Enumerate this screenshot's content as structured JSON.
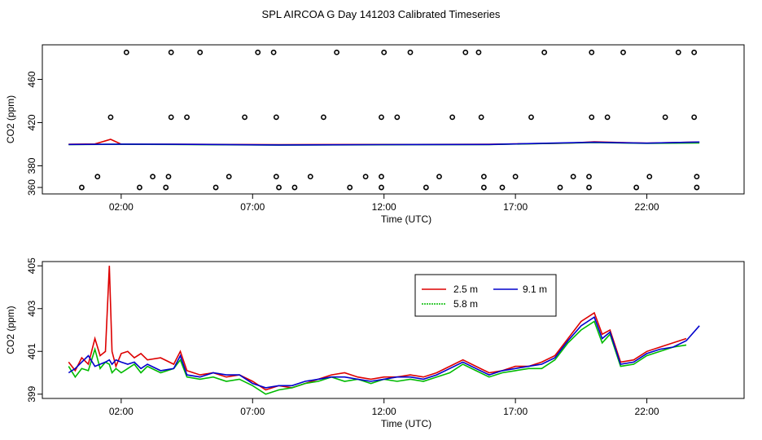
{
  "figure": {
    "title": "SPL AIRCOA G  Day 141203  Calibrated Timeseries"
  },
  "colors": {
    "2.5 m": "#dd0000",
    "5.8 m": "#00bb00",
    "9.1 m": "#0000cc",
    "axis": "#000000"
  },
  "chart_data": [
    {
      "type": "scatter",
      "title": "",
      "xlabel": "Time (UTC)",
      "ylabel": "CO2 (ppm)",
      "x_unit": "hours UTC",
      "xlim": [
        -1.0,
        25.7
      ],
      "ylim": [
        354,
        492
      ],
      "xticks": [
        2,
        7,
        12,
        17,
        22
      ],
      "xtick_labels": [
        "02:00",
        "07:00",
        "12:00",
        "17:00",
        "22:00"
      ],
      "yticks": [
        360,
        380,
        420,
        460
      ],
      "ytick_labels": [
        "360",
        "380",
        "420",
        "460"
      ],
      "grid": false,
      "legend": "none",
      "points": [
        [
          0.5,
          360
        ],
        [
          1.1,
          370
        ],
        [
          1.6,
          425
        ],
        [
          2.2,
          485
        ],
        [
          2.7,
          360
        ],
        [
          3.2,
          370
        ],
        [
          3.7,
          360
        ],
        [
          3.8,
          370
        ],
        [
          3.9,
          425
        ],
        [
          3.9,
          485
        ],
        [
          4.5,
          425
        ],
        [
          5.0,
          485
        ],
        [
          5.6,
          360
        ],
        [
          6.1,
          370
        ],
        [
          6.7,
          425
        ],
        [
          7.2,
          485
        ],
        [
          7.8,
          485
        ],
        [
          7.9,
          370
        ],
        [
          7.9,
          425
        ],
        [
          8.0,
          360
        ],
        [
          8.6,
          360
        ],
        [
          9.2,
          370
        ],
        [
          9.7,
          425
        ],
        [
          10.2,
          485
        ],
        [
          10.7,
          360
        ],
        [
          11.3,
          370
        ],
        [
          11.9,
          360
        ],
        [
          11.9,
          370
        ],
        [
          11.9,
          425
        ],
        [
          12.0,
          485
        ],
        [
          12.5,
          425
        ],
        [
          13.0,
          485
        ],
        [
          13.6,
          360
        ],
        [
          14.1,
          370
        ],
        [
          14.6,
          425
        ],
        [
          15.1,
          485
        ],
        [
          15.6,
          485
        ],
        [
          15.7,
          425
        ],
        [
          15.8,
          370
        ],
        [
          15.8,
          360
        ],
        [
          16.5,
          360
        ],
        [
          17.0,
          370
        ],
        [
          17.6,
          425
        ],
        [
          18.1,
          485
        ],
        [
          18.7,
          360
        ],
        [
          19.2,
          370
        ],
        [
          19.8,
          360
        ],
        [
          19.8,
          370
        ],
        [
          19.9,
          425
        ],
        [
          19.9,
          485
        ],
        [
          20.5,
          425
        ],
        [
          21.1,
          485
        ],
        [
          21.6,
          360
        ],
        [
          22.1,
          370
        ],
        [
          22.7,
          425
        ],
        [
          23.2,
          485
        ],
        [
          23.8,
          485
        ],
        [
          23.8,
          425
        ],
        [
          23.9,
          370
        ],
        [
          23.9,
          360
        ]
      ],
      "series": [
        {
          "name": "",
          "x": [
            0,
            1,
            1.6,
            2,
            4,
            8,
            12,
            16,
            19,
            20,
            22,
            24
          ],
          "values": [
            399.9,
            400.2,
            404.5,
            400.0,
            400.0,
            399.6,
            399.8,
            399.9,
            401.0,
            402.2,
            401.0,
            402.0
          ]
        },
        {
          "name": "",
          "x": [
            0,
            2,
            4,
            8,
            12,
            16,
            20,
            22,
            24
          ],
          "values": [
            399.7,
            399.9,
            399.8,
            399.2,
            399.5,
            399.7,
            401.5,
            400.8,
            401.2
          ]
        },
        {
          "name": "",
          "x": [
            0,
            2,
            4,
            8,
            12,
            16,
            20,
            22,
            24
          ],
          "values": [
            399.8,
            400.1,
            399.9,
            399.3,
            399.6,
            399.8,
            401.8,
            401.0,
            402.0
          ]
        }
      ]
    },
    {
      "type": "line",
      "title": "",
      "xlabel": "Time (UTC)",
      "ylabel": "CO2 (ppm)",
      "x_unit": "hours UTC",
      "xlim": [
        -1.0,
        25.7
      ],
      "ylim": [
        398.8,
        405.2
      ],
      "xticks": [
        2,
        7,
        12,
        17,
        22
      ],
      "xtick_labels": [
        "02:00",
        "07:00",
        "12:00",
        "17:00",
        "22:00"
      ],
      "yticks": [
        399,
        401,
        403,
        405
      ],
      "ytick_labels": [
        "399",
        "401",
        "403",
        "405"
      ],
      "grid": false,
      "legend": "top-center",
      "series": [
        {
          "name": "2.5 m",
          "x": [
            0,
            0.25,
            0.5,
            0.75,
            1,
            1.2,
            1.4,
            1.55,
            1.65,
            1.8,
            2,
            2.25,
            2.5,
            2.75,
            3,
            3.5,
            4,
            4.25,
            4.5,
            5,
            5.5,
            6,
            6.5,
            7,
            7.5,
            8,
            8.5,
            9,
            9.5,
            10,
            10.5,
            11,
            11.5,
            12,
            12.5,
            13,
            13.5,
            14,
            14.5,
            15,
            15.5,
            16,
            16.5,
            17,
            17.5,
            18,
            18.5,
            19,
            19.5,
            20,
            20.3,
            20.6,
            21,
            21.5,
            22,
            22.5,
            23,
            23.5
          ],
          "values": [
            400.5,
            400.1,
            400.7,
            400.4,
            401.6,
            400.8,
            401.0,
            405.0,
            401.0,
            400.3,
            400.9,
            401.0,
            400.7,
            400.9,
            400.6,
            400.7,
            400.4,
            401.0,
            400.1,
            399.9,
            400.0,
            399.8,
            399.9,
            399.6,
            399.2,
            399.4,
            399.3,
            399.5,
            399.7,
            399.9,
            400.0,
            399.8,
            399.7,
            399.8,
            399.8,
            399.9,
            399.8,
            400.0,
            400.3,
            400.6,
            400.3,
            400.0,
            400.1,
            400.3,
            400.3,
            400.5,
            400.8,
            401.6,
            402.4,
            402.8,
            401.8,
            402.0,
            400.5,
            400.6,
            401.0,
            401.2,
            401.4,
            401.6
          ]
        },
        {
          "name": "5.8 m",
          "x": [
            0,
            0.25,
            0.5,
            0.75,
            1,
            1.2,
            1.4,
            1.55,
            1.65,
            1.8,
            2,
            2.25,
            2.5,
            2.75,
            3,
            3.5,
            4,
            4.25,
            4.5,
            5,
            5.5,
            6,
            6.5,
            7,
            7.5,
            8,
            8.5,
            9,
            9.5,
            10,
            10.5,
            11,
            11.5,
            12,
            12.5,
            13,
            13.5,
            14,
            14.5,
            15,
            15.5,
            16,
            16.5,
            17,
            17.5,
            18,
            18.5,
            19,
            19.5,
            20,
            20.3,
            20.6,
            21,
            21.5,
            22,
            22.5,
            23,
            23.5
          ],
          "values": [
            400.3,
            399.8,
            400.2,
            400.1,
            401.1,
            400.2,
            400.5,
            400.4,
            400.0,
            400.2,
            400.0,
            400.2,
            400.4,
            400.0,
            400.3,
            400.0,
            400.2,
            400.6,
            399.8,
            399.7,
            399.8,
            399.6,
            399.7,
            399.4,
            399.0,
            399.2,
            399.3,
            399.5,
            399.6,
            399.8,
            399.6,
            399.7,
            399.5,
            399.7,
            399.6,
            399.7,
            399.6,
            399.8,
            400.0,
            400.4,
            400.1,
            399.8,
            400.0,
            400.1,
            400.2,
            400.2,
            400.6,
            401.4,
            402.0,
            402.4,
            401.4,
            401.8,
            400.3,
            400.4,
            400.8,
            401.0,
            401.2,
            401.3
          ]
        },
        {
          "name": "9.1 m",
          "x": [
            0,
            0.25,
            0.5,
            0.75,
            1,
            1.2,
            1.4,
            1.55,
            1.65,
            1.8,
            2,
            2.25,
            2.5,
            2.75,
            3,
            3.5,
            4,
            4.25,
            4.5,
            5,
            5.5,
            6,
            6.5,
            7,
            7.5,
            8,
            8.5,
            9,
            9.5,
            10,
            10.5,
            11,
            11.5,
            12,
            12.5,
            13,
            13.5,
            14,
            14.5,
            15,
            15.5,
            16,
            16.5,
            17,
            17.5,
            18,
            18.5,
            19,
            19.5,
            20,
            20.3,
            20.6,
            21,
            21.5,
            22,
            22.5,
            23,
            23.5,
            24
          ],
          "values": [
            400.0,
            400.2,
            400.5,
            400.8,
            400.3,
            400.4,
            400.5,
            400.6,
            400.4,
            400.6,
            400.5,
            400.4,
            400.5,
            400.2,
            400.4,
            400.1,
            400.2,
            400.8,
            399.9,
            399.8,
            400.0,
            399.9,
            399.9,
            399.5,
            399.3,
            399.4,
            399.4,
            399.6,
            399.7,
            399.8,
            399.8,
            399.7,
            399.6,
            399.7,
            399.8,
            399.8,
            399.7,
            399.9,
            400.2,
            400.5,
            400.2,
            399.9,
            400.1,
            400.2,
            400.3,
            400.4,
            400.7,
            401.5,
            402.2,
            402.6,
            401.6,
            401.9,
            400.4,
            400.5,
            400.9,
            401.1,
            401.2,
            401.5,
            402.2
          ]
        }
      ]
    }
  ]
}
